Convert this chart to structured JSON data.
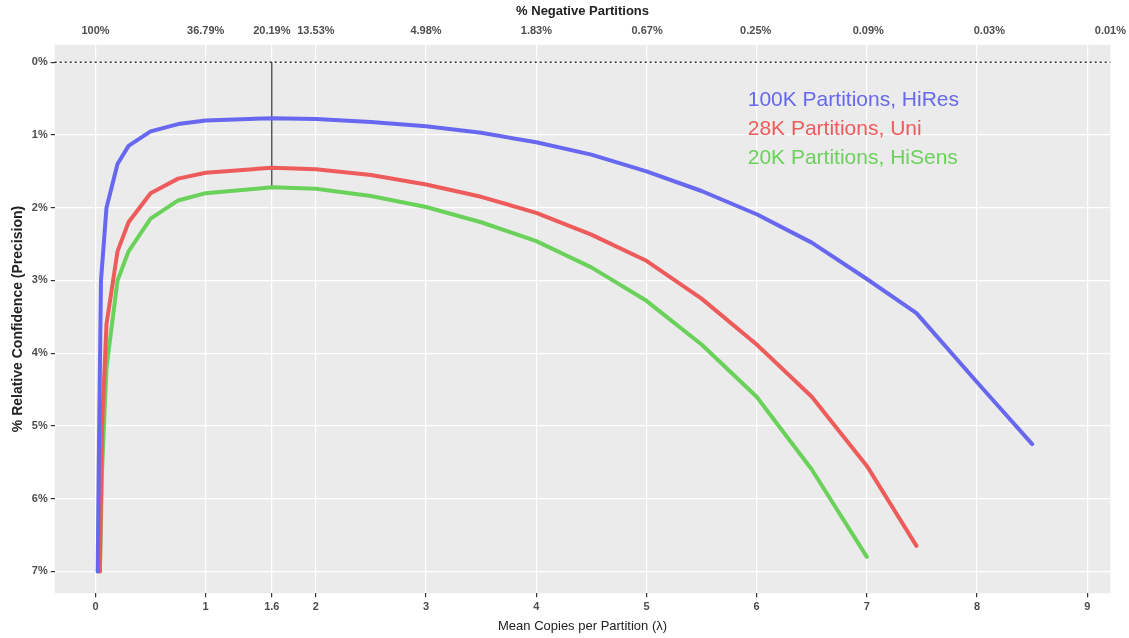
{
  "chart_data": {
    "type": "line",
    "xlabel": "Mean Copies per Partition (λ)",
    "ylabel": "% Relative Confidence (Precision)",
    "x2label": "% Negative Partitions",
    "xlim": [
      -0.37,
      9.21
    ],
    "xticks": [
      0,
      1,
      1.6,
      2,
      3,
      4,
      5,
      6,
      7,
      8,
      9
    ],
    "x2lim": [
      144.8,
      0.01
    ],
    "x2ticks": [
      {
        "value": 100,
        "label": "100%"
      },
      {
        "value": 36.79,
        "label": "36.79%"
      },
      {
        "value": 20.19,
        "label": "20.19%"
      },
      {
        "value": 13.53,
        "label": "13.53%"
      },
      {
        "value": 4.98,
        "label": "4.98%"
      },
      {
        "value": 1.83,
        "label": "1.83%"
      },
      {
        "value": 0.67,
        "label": "0.67%"
      },
      {
        "value": 0.25,
        "label": "0.25%"
      },
      {
        "value": 0.09,
        "label": "0.09%"
      },
      {
        "value": 0.03,
        "label": "0.03%"
      },
      {
        "value": 0.01,
        "label": "0.01%"
      }
    ],
    "log": "x2",
    "ylim": [
      7.3,
      -0.24
    ],
    "yticks": [
      {
        "value": 0,
        "label": "0%"
      },
      {
        "value": 1,
        "label": "1%"
      },
      {
        "value": 2,
        "label": "2%"
      },
      {
        "value": 3,
        "label": "3%"
      },
      {
        "value": 4,
        "label": "4%"
      },
      {
        "value": 5,
        "label": "5%"
      },
      {
        "value": 6,
        "label": "6%"
      },
      {
        "value": 7,
        "label": "7%"
      }
    ],
    "grid": true,
    "legend": "top right",
    "marker": "none",
    "line_style": "solid",
    "ref_lines": [
      {
        "axis": "y",
        "value": 0,
        "label": null,
        "color": "#333333",
        "line_style": "dotted"
      }
    ],
    "series": [
      {
        "name": "100K Partitions, HiRes",
        "color": "#6767f0",
        "x": [
          0.02,
          0.03,
          0.05,
          0.1,
          0.2,
          0.3,
          0.5,
          0.75,
          1,
          1.6,
          2,
          2.5,
          3,
          3.5,
          4,
          4.5,
          5,
          5.5,
          6,
          6.5,
          7,
          7.45,
          8,
          8.5
        ],
        "values": [
          7.0,
          5.5,
          3.0,
          2.0,
          1.4,
          1.15,
          0.95,
          0.85,
          0.8,
          0.77,
          0.78,
          0.82,
          0.88,
          0.97,
          1.1,
          1.27,
          1.5,
          1.77,
          2.09,
          2.48,
          2.98,
          3.45,
          4.4,
          5.25
        ]
      },
      {
        "name": "28K Partitions, Uni",
        "color": "#ee5b5b",
        "x": [
          0.04,
          0.06,
          0.1,
          0.2,
          0.3,
          0.5,
          0.75,
          1,
          1.6,
          2,
          2.5,
          3,
          3.5,
          4,
          4.5,
          5,
          5.5,
          6,
          6.5,
          7,
          7.45
        ],
        "values": [
          7.0,
          5.0,
          3.6,
          2.6,
          2.2,
          1.8,
          1.6,
          1.52,
          1.45,
          1.47,
          1.55,
          1.68,
          1.85,
          2.07,
          2.37,
          2.73,
          3.25,
          3.88,
          4.6,
          5.55,
          6.65
        ]
      },
      {
        "name": "20K Partitions, HiSens",
        "color": "#6ad15a",
        "x": [
          0.04,
          0.06,
          0.1,
          0.2,
          0.3,
          0.5,
          0.75,
          1,
          1.6,
          2,
          2.5,
          3,
          3.5,
          4,
          4.5,
          5,
          5.5,
          6,
          6.5,
          7
        ],
        "values": [
          7.0,
          5.6,
          4.2,
          3.0,
          2.6,
          2.15,
          1.9,
          1.8,
          1.72,
          1.74,
          1.84,
          1.99,
          2.2,
          2.46,
          2.82,
          3.28,
          3.88,
          4.6,
          5.6,
          6.8
        ]
      },
      {
        "color": "#333333",
        "x": [
          1.6,
          1.6
        ],
        "values": [
          0,
          1.72
        ]
      }
    ]
  }
}
